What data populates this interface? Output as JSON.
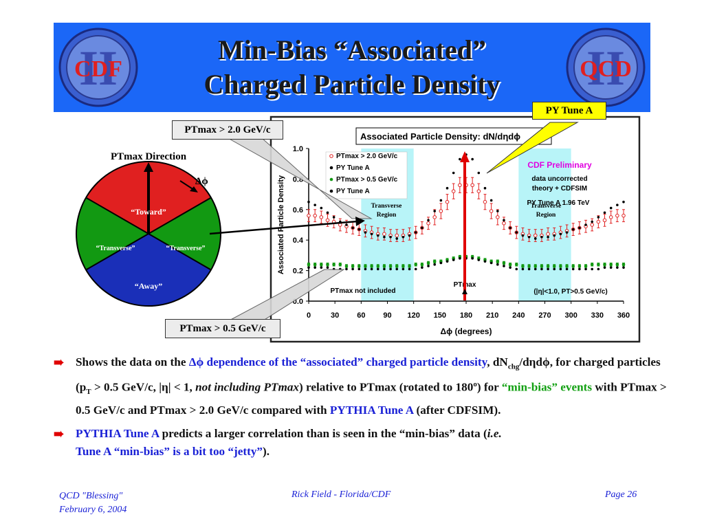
{
  "slide": {
    "title_line1": "Min-Bias “Associated”",
    "title_line2": "Charged Particle Density",
    "logo_left": "CDF",
    "logo_left_numeral": "II",
    "logo_right": "QCD",
    "logo_right_numeral": "II",
    "colors": {
      "banner": "#1b67f7",
      "toward": "#e02020",
      "transverse": "#129912",
      "away": "#1a2fb8",
      "callout_highlight": "#ffff00",
      "arrow": "#e00000"
    }
  },
  "callouts": {
    "tune_a": "PY Tune A",
    "ptmax2": "PTmax > 2.0 GeV/c",
    "ptmax05": "PTmax > 0.5 GeV/c"
  },
  "diagram": {
    "direction_label": "PTmax Direction",
    "dphi_label": "Δϕ",
    "toward": "“Toward”",
    "transverse_left": "“Transverse”",
    "transverse_right": "“Transverse”",
    "away": "“Away”"
  },
  "chart_data": {
    "type": "scatter",
    "title": "Associated Particle Density: dN/dηdϕ",
    "xlabel": "Δϕ  (degrees)",
    "ylabel": "Associated Particle Density",
    "xlim": [
      0,
      360
    ],
    "ylim": [
      0,
      1.0
    ],
    "x_ticks": [
      "0",
      "30",
      "60",
      "90",
      "120",
      "150",
      "180",
      "210",
      "240",
      "270",
      "300",
      "330",
      "360"
    ],
    "y_ticks": [
      "0.0",
      "0.2",
      "0.4",
      "0.6",
      "0.8",
      "1.0"
    ],
    "x": [
      0,
      7.2,
      14.4,
      21.6,
      28.8,
      36,
      43.2,
      50.4,
      57.6,
      64.8,
      72,
      79.2,
      86.4,
      93.6,
      100.8,
      108,
      115.2,
      122.4,
      129.6,
      136.8,
      144,
      151.2,
      158.4,
      165.6,
      172.8,
      180,
      187.2,
      194.4,
      201.6,
      208.8,
      216,
      223.2,
      230.4,
      237.6,
      244.8,
      252,
      259.2,
      266.4,
      273.6,
      280.8,
      288,
      295.2,
      302.4,
      309.6,
      316.8,
      324,
      331.2,
      338.4,
      345.6,
      352.8,
      360
    ],
    "series": [
      {
        "name": "PTmax > 2.0 GeV/c",
        "marker": "open-circle",
        "color": "#e02020",
        "values": [
          0.56,
          0.56,
          0.55,
          0.53,
          0.52,
          0.5,
          0.49,
          0.48,
          0.47,
          0.46,
          0.45,
          0.44,
          0.44,
          0.43,
          0.43,
          0.43,
          0.44,
          0.45,
          0.48,
          0.51,
          0.55,
          0.59,
          0.65,
          0.72,
          0.76,
          0.76,
          0.76,
          0.72,
          0.65,
          0.59,
          0.55,
          0.51,
          0.48,
          0.45,
          0.44,
          0.43,
          0.43,
          0.43,
          0.44,
          0.44,
          0.45,
          0.46,
          0.47,
          0.48,
          0.49,
          0.5,
          0.52,
          0.53,
          0.55,
          0.56,
          0.56
        ],
        "errors": [
          0.04,
          0.04,
          0.04,
          0.04,
          0.04,
          0.04,
          0.04,
          0.04,
          0.04,
          0.04,
          0.04,
          0.04,
          0.04,
          0.04,
          0.04,
          0.04,
          0.04,
          0.04,
          0.04,
          0.04,
          0.05,
          0.05,
          0.05,
          0.05,
          0.05,
          0.05,
          0.05,
          0.05,
          0.05,
          0.05,
          0.05,
          0.04,
          0.04,
          0.04,
          0.04,
          0.04,
          0.04,
          0.04,
          0.04,
          0.04,
          0.04,
          0.04,
          0.04,
          0.04,
          0.04,
          0.04,
          0.04,
          0.04,
          0.04,
          0.04,
          0.04
        ]
      },
      {
        "name": "PY Tune A",
        "marker": "dot",
        "color": "#000000",
        "values": [
          0.65,
          0.63,
          0.61,
          0.58,
          0.55,
          0.52,
          0.5,
          0.48,
          0.47,
          0.45,
          0.44,
          0.43,
          0.42,
          0.42,
          0.41,
          0.42,
          0.43,
          0.45,
          0.48,
          0.53,
          0.59,
          0.66,
          0.74,
          0.84,
          0.93,
          0.96,
          0.93,
          0.84,
          0.74,
          0.66,
          0.59,
          0.53,
          0.48,
          0.45,
          0.43,
          0.42,
          0.41,
          0.42,
          0.42,
          0.43,
          0.44,
          0.45,
          0.47,
          0.48,
          0.5,
          0.52,
          0.55,
          0.58,
          0.61,
          0.63,
          0.65
        ]
      },
      {
        "name": "PTmax > 0.5 GeV/c",
        "marker": "filled-circle",
        "color": "#129912",
        "values": [
          0.24,
          0.24,
          0.24,
          0.24,
          0.24,
          0.24,
          0.23,
          0.23,
          0.23,
          0.23,
          0.23,
          0.23,
          0.23,
          0.23,
          0.23,
          0.23,
          0.23,
          0.24,
          0.24,
          0.25,
          0.26,
          0.26,
          0.27,
          0.28,
          0.29,
          0.29,
          0.29,
          0.28,
          0.27,
          0.26,
          0.26,
          0.25,
          0.24,
          0.24,
          0.23,
          0.23,
          0.23,
          0.23,
          0.23,
          0.23,
          0.23,
          0.23,
          0.23,
          0.23,
          0.23,
          0.24,
          0.24,
          0.24,
          0.24,
          0.24,
          0.24
        ],
        "errors": [
          0.01,
          0.01,
          0.01,
          0.01,
          0.01,
          0.01,
          0.01,
          0.01,
          0.01,
          0.01,
          0.01,
          0.01,
          0.01,
          0.01,
          0.01,
          0.01,
          0.01,
          0.01,
          0.01,
          0.01,
          0.01,
          0.01,
          0.01,
          0.01,
          0.01,
          0.01,
          0.01,
          0.01,
          0.01,
          0.01,
          0.01,
          0.01,
          0.01,
          0.01,
          0.01,
          0.01,
          0.01,
          0.01,
          0.01,
          0.01,
          0.01,
          0.01,
          0.01,
          0.01,
          0.01,
          0.01,
          0.01,
          0.01,
          0.01,
          0.01,
          0.01
        ]
      },
      {
        "name": "PY Tune A",
        "marker": "dot",
        "color": "#000000",
        "values": [
          0.22,
          0.22,
          0.22,
          0.22,
          0.21,
          0.21,
          0.21,
          0.21,
          0.21,
          0.21,
          0.21,
          0.21,
          0.21,
          0.21,
          0.21,
          0.21,
          0.21,
          0.21,
          0.22,
          0.23,
          0.24,
          0.25,
          0.26,
          0.27,
          0.28,
          0.28,
          0.28,
          0.27,
          0.26,
          0.25,
          0.24,
          0.23,
          0.22,
          0.21,
          0.21,
          0.21,
          0.21,
          0.21,
          0.21,
          0.21,
          0.21,
          0.21,
          0.21,
          0.21,
          0.21,
          0.21,
          0.21,
          0.22,
          0.22,
          0.22,
          0.22
        ]
      }
    ],
    "shaded_regions": [
      [
        60,
        120
      ],
      [
        240,
        300
      ]
    ],
    "annotations": {
      "cdf_prelim": "CDF Preliminary",
      "uncorrected": "data uncorrected",
      "theory": "theory + CDFSIM",
      "tune_energy": "PY Tune A  1.96 TeV",
      "transverse_region": "Transverse Region",
      "ptmax_not_included": "PTmax not included",
      "cuts": "(|η|<1.0, PT>0.5 GeV/c)",
      "ptmax": "PTmax"
    },
    "legend_position": "top-left",
    "grid": false
  },
  "bullets": {
    "b1": {
      "p1": "Shows the data on the ",
      "p2": "Δϕ dependence of the “associated” charged particle density",
      "p3": ", dN",
      "sub1": "chg",
      "p4": "/dηdϕ, for charged particles (p",
      "sub2": "T",
      "p5": " > 0.5 GeV/c, |η| < 1, ",
      "p6": "not including PTmax",
      "p7": ") relative to PTmax (rotated to 180",
      "sup1": "o",
      "p8": ") for ",
      "p9": "“min-bias” events",
      "p10": " with PTmax > 0.5 GeV/c and PTmax > 2.0 GeV/c compared with ",
      "p11": "PYTHIA Tune A",
      "p12": " (after CDFSIM)."
    },
    "b2": {
      "p1": "PYTHIA Tune A",
      "p2": " predicts a larger correlation than is seen in the “min-bias” data (",
      "p3": "i.e.",
      "p4": "Tune A “min-bias” is a bit too “jetty”",
      "p5": ")."
    }
  },
  "footer": {
    "left_line1": "QCD \"Blessing\"",
    "left_line2": "February 6, 2004",
    "center": "Rick Field - Florida/CDF",
    "right": "Page 26"
  }
}
